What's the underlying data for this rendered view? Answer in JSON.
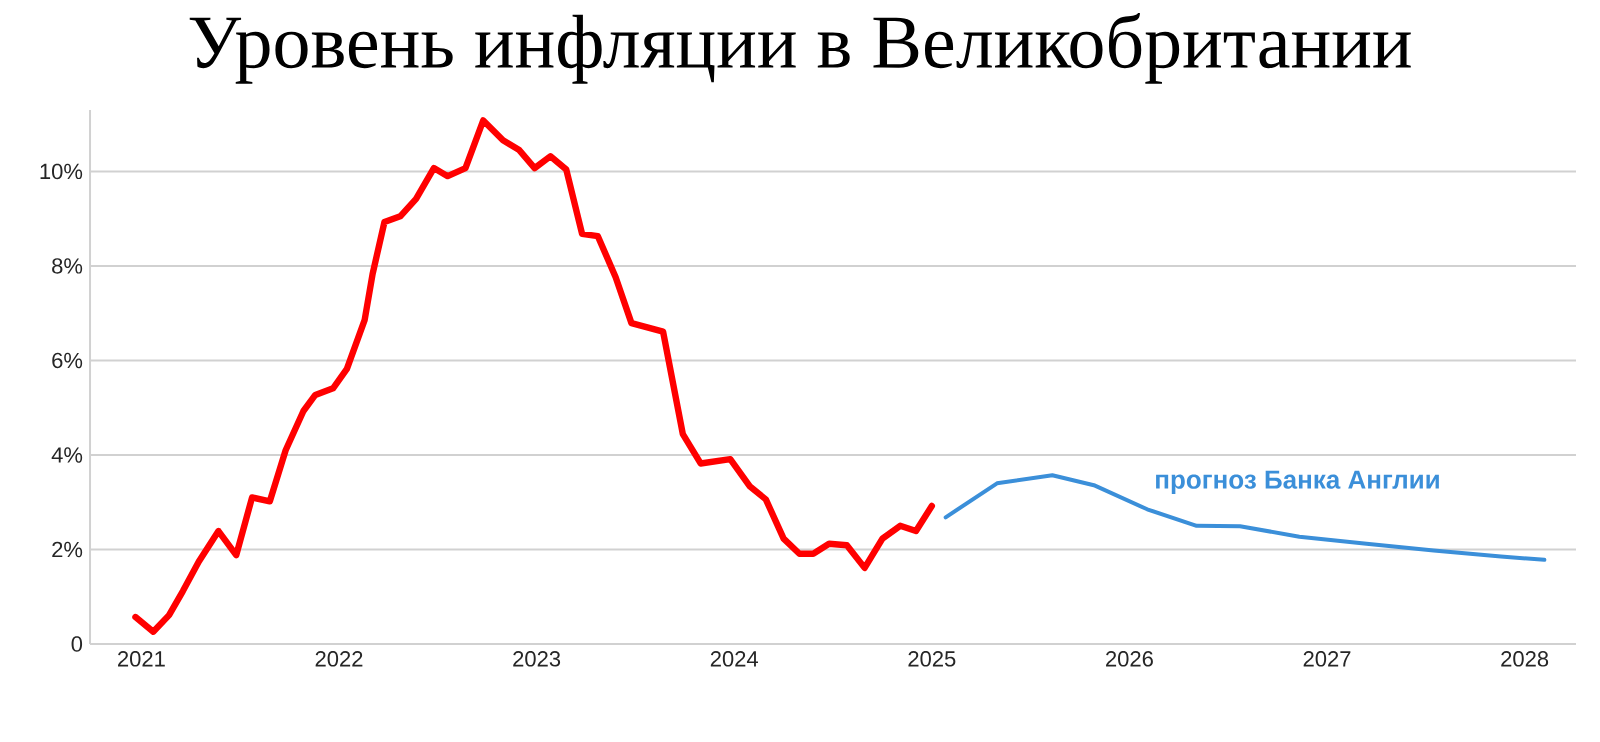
{
  "chart_data": {
    "type": "line",
    "title": "Уровень инфляции в Великобритании",
    "xlim": [
      2020.74,
      2028.26
    ],
    "ylim": [
      0,
      11.3
    ],
    "xticks": [
      2021,
      2022,
      2023,
      2024,
      2025,
      2026,
      2027,
      2028
    ],
    "yticks": [
      0,
      {
        "value": 2,
        "label": "2%"
      },
      {
        "value": 4,
        "label": "4%"
      },
      {
        "value": 6,
        "label": "6%"
      },
      {
        "value": 8,
        "label": "8%"
      },
      {
        "value": 10,
        "label": "10%"
      }
    ],
    "grid": "y",
    "legend": false,
    "series": [
      {
        "color": "#ff0000",
        "x": [
          2020.97,
          2021.06,
          2021.14,
          2021.21,
          2021.29,
          2021.39,
          2021.48,
          2021.56,
          2021.65,
          2021.73,
          2021.82,
          2021.88,
          2021.97,
          2022.04,
          2022.13,
          2022.17,
          2022.23,
          2022.31,
          2022.39,
          2022.48,
          2022.55,
          2022.64,
          2022.73,
          2022.83,
          2022.91,
          2022.99,
          2023.07,
          2023.15,
          2023.23,
          2023.31,
          2023.4,
          2023.48,
          2023.64,
          2023.74,
          2023.83,
          2023.98,
          2024.08,
          2024.16,
          2024.25,
          2024.33,
          2024.4,
          2024.48,
          2024.57,
          2024.66,
          2024.75,
          2024.84,
          2024.92,
          2025.0
        ],
        "values": [
          0.57,
          0.26,
          0.61,
          1.12,
          1.74,
          2.39,
          1.88,
          3.1,
          3.02,
          4.1,
          4.93,
          5.27,
          5.41,
          5.82,
          6.86,
          7.83,
          8.93,
          9.05,
          9.42,
          10.07,
          9.9,
          10.07,
          11.08,
          10.66,
          10.46,
          10.07,
          10.32,
          10.04,
          8.68,
          8.63,
          7.76,
          6.79,
          6.61,
          4.44,
          3.82,
          3.91,
          3.33,
          3.06,
          2.23,
          1.91,
          1.91,
          2.12,
          2.09,
          1.61,
          2.23,
          2.5,
          2.39,
          2.92
        ]
      },
      {
        "name": "прогноз Банка Англии",
        "color": "#3b8fd9",
        "x": [
          2025.07,
          2025.33,
          2025.61,
          2025.82,
          2026.09,
          2026.34,
          2026.56,
          2026.86,
          2027.2,
          2027.54,
          2027.88,
          2028.1
        ],
        "values": [
          2.68,
          3.4,
          3.57,
          3.36,
          2.85,
          2.5,
          2.49,
          2.27,
          2.12,
          1.98,
          1.85,
          1.78
        ]
      }
    ]
  }
}
